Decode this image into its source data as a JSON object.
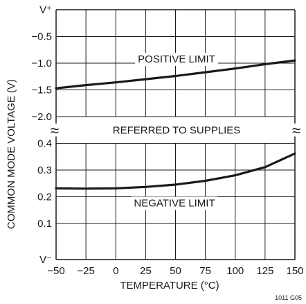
{
  "chart_data": {
    "type": "line",
    "title": "",
    "xlabel": "TEMPERATURE (°C)",
    "ylabel": "COMMON MODE VOLTAGE (V)",
    "x_ticks": [
      "−50",
      "−25",
      "0",
      "25",
      "50",
      "75",
      "100",
      "125",
      "150"
    ],
    "xlim": [
      -50,
      150
    ],
    "grid": true,
    "legend": "none",
    "panels": [
      {
        "name": "upper",
        "y_ticks": [
          "V⁺",
          "−0.5",
          "−1.0",
          "−1.5",
          "−2.0"
        ],
        "ylim": [
          -2.0,
          0.0
        ],
        "series": [
          {
            "name": "POSITIVE LIMIT",
            "x": [
              -50,
              -25,
              0,
              25,
              50,
              75,
              100,
              125,
              150
            ],
            "y": [
              -1.47,
              -1.41,
              -1.36,
              -1.3,
              -1.24,
              -1.17,
              -1.1,
              -1.02,
              -0.95
            ]
          }
        ]
      },
      {
        "name": "lower",
        "y_ticks": [
          "0.4",
          "0.3",
          "0.2",
          "0.1",
          "V⁻"
        ],
        "ylim": [
          0.0,
          0.4
        ],
        "series": [
          {
            "name": "NEGATIVE LIMIT",
            "x": [
              -50,
              -25,
              0,
              25,
              50,
              75,
              100,
              125,
              150
            ],
            "y": [
              0.245,
              0.244,
              0.245,
              0.25,
              0.258,
              0.271,
              0.29,
              0.318,
              0.365
            ]
          }
        ]
      }
    ],
    "annotations": {
      "positive_limit": "POSITIVE LIMIT",
      "negative_limit": "NEGATIVE LIMIT",
      "middle": "REFERRED TO SUPPLIES",
      "break_mark": "≈"
    },
    "figure_id": "1011 G05",
    "colors": {
      "line": "#1a1a1a",
      "grid": "#1a1a1a",
      "background": "#ffffff"
    }
  }
}
